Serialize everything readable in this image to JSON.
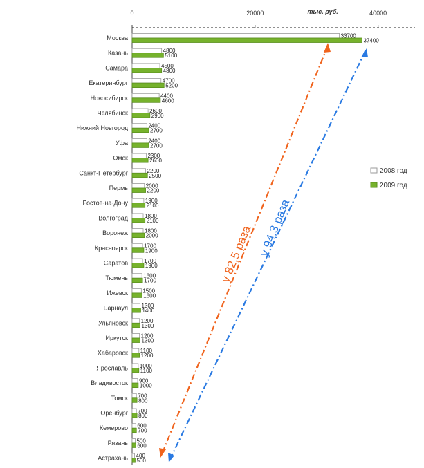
{
  "chart_data": {
    "type": "bar",
    "orientation": "horizontal",
    "categories": [
      "Москва",
      "Казань",
      "Самара",
      "Екатеринбург",
      "Новосибирск",
      "Челябинск",
      "Нижний Новгород",
      "Уфа",
      "Омск",
      "Санкт-Петербург",
      "Пермь",
      "Ростов-на-Дону",
      "Волгоград",
      "Воронеж",
      "Красноярск",
      "Саратов",
      "Тюмень",
      "Ижевск",
      "Барнаул",
      "Ульяновск",
      "Иркутск",
      "Хабаровск",
      "Ярославль",
      "Владивосток",
      "Томск",
      "Оренбург",
      "Кемерово",
      "Рязань",
      "Астрахань"
    ],
    "series": [
      {
        "name": "2008 год",
        "color": "#ffffff",
        "stroke": "#9a9a9a",
        "values": [
          33700,
          4800,
          4500,
          4700,
          4400,
          2600,
          2400,
          2400,
          2300,
          2200,
          2000,
          1900,
          1800,
          1800,
          1700,
          1700,
          1600,
          1500,
          1300,
          1200,
          1200,
          1100,
          1000,
          900,
          700,
          700,
          600,
          500,
          400
        ]
      },
      {
        "name": "2009 год",
        "color": "#76b22c",
        "stroke": "#5a8f1e",
        "values": [
          37400,
          5100,
          4800,
          5200,
          4600,
          2900,
          2700,
          2700,
          2600,
          2500,
          2200,
          2100,
          2100,
          2000,
          1900,
          1900,
          1700,
          1600,
          1400,
          1300,
          1300,
          1200,
          1100,
          1000,
          800,
          800,
          700,
          600,
          500
        ]
      }
    ],
    "data_labels": {
      "2008 год": [
        "33700",
        "4800",
        "4500",
        "4700",
        "4400",
        "2600",
        "2400",
        "2400",
        "2300",
        "2200",
        "2000",
        "1900",
        "1800",
        "1800",
        "1700",
        "1700",
        "1600",
        "1500",
        "1300",
        "1200",
        "1200",
        "1100",
        "1000",
        "900",
        "700",
        "700",
        "600",
        "500",
        "400"
      ],
      "2009 год": [
        "37400",
        "5100",
        "4800",
        "5200",
        "4600",
        "2900",
        "2700",
        "2700",
        "2600",
        "2500",
        "2200",
        "2100",
        "2100",
        "2000",
        "1900",
        "1900",
        "1700",
        "1600",
        "1400",
        "1300",
        "1300",
        "1200",
        "1100",
        "1000",
        "800",
        "800",
        "700",
        "600",
        "500"
      ]
    },
    "xticks": [
      0,
      20000,
      40000
    ],
    "xtick_labels": [
      "0",
      "20000",
      "40000"
    ],
    "xlim": [
      0,
      46000
    ],
    "top_axis_label": "тыс. руб.",
    "legend": {
      "position": "right",
      "entries": [
        "2008 год",
        "2009 год"
      ]
    },
    "annotations": [
      {
        "text": "у 82,5 раза",
        "color": "#f0641e"
      },
      {
        "text": "у 94,3 раза",
        "color": "#2a7ae2"
      }
    ],
    "grid": false
  }
}
